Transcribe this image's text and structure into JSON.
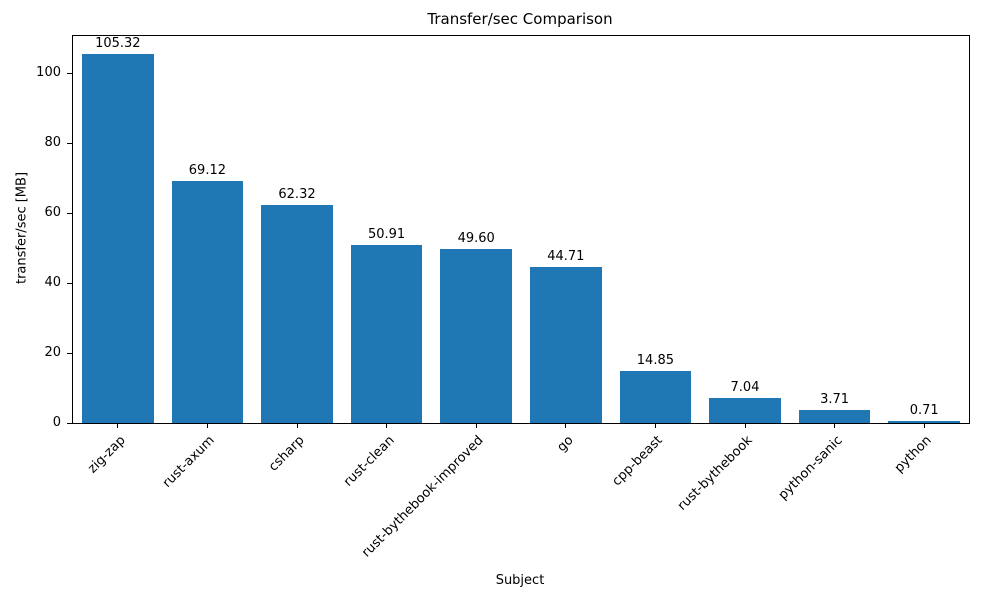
{
  "chart_data": {
    "type": "bar",
    "title": "Transfer/sec Comparison",
    "xlabel": "Subject",
    "ylabel": "transfer/sec [MB]",
    "categories": [
      "zig-zap",
      "rust-axum",
      "csharp",
      "rust-clean",
      "rust-bythebook-improved",
      "go",
      "cpp-beast",
      "rust-bythebook",
      "python-sanic",
      "python"
    ],
    "values": [
      105.32,
      69.12,
      62.32,
      50.91,
      49.6,
      44.71,
      14.85,
      7.04,
      3.71,
      0.71
    ],
    "value_labels": [
      "105.32",
      "69.12",
      "62.32",
      "50.91",
      "49.60",
      "44.71",
      "14.85",
      "7.04",
      "3.71",
      "0.71"
    ],
    "ylim": [
      0,
      110.6
    ],
    "yticks": [
      0,
      20,
      40,
      60,
      80,
      100
    ],
    "bar_color": "#1f77b4",
    "grid": false,
    "legend_position": "none"
  }
}
